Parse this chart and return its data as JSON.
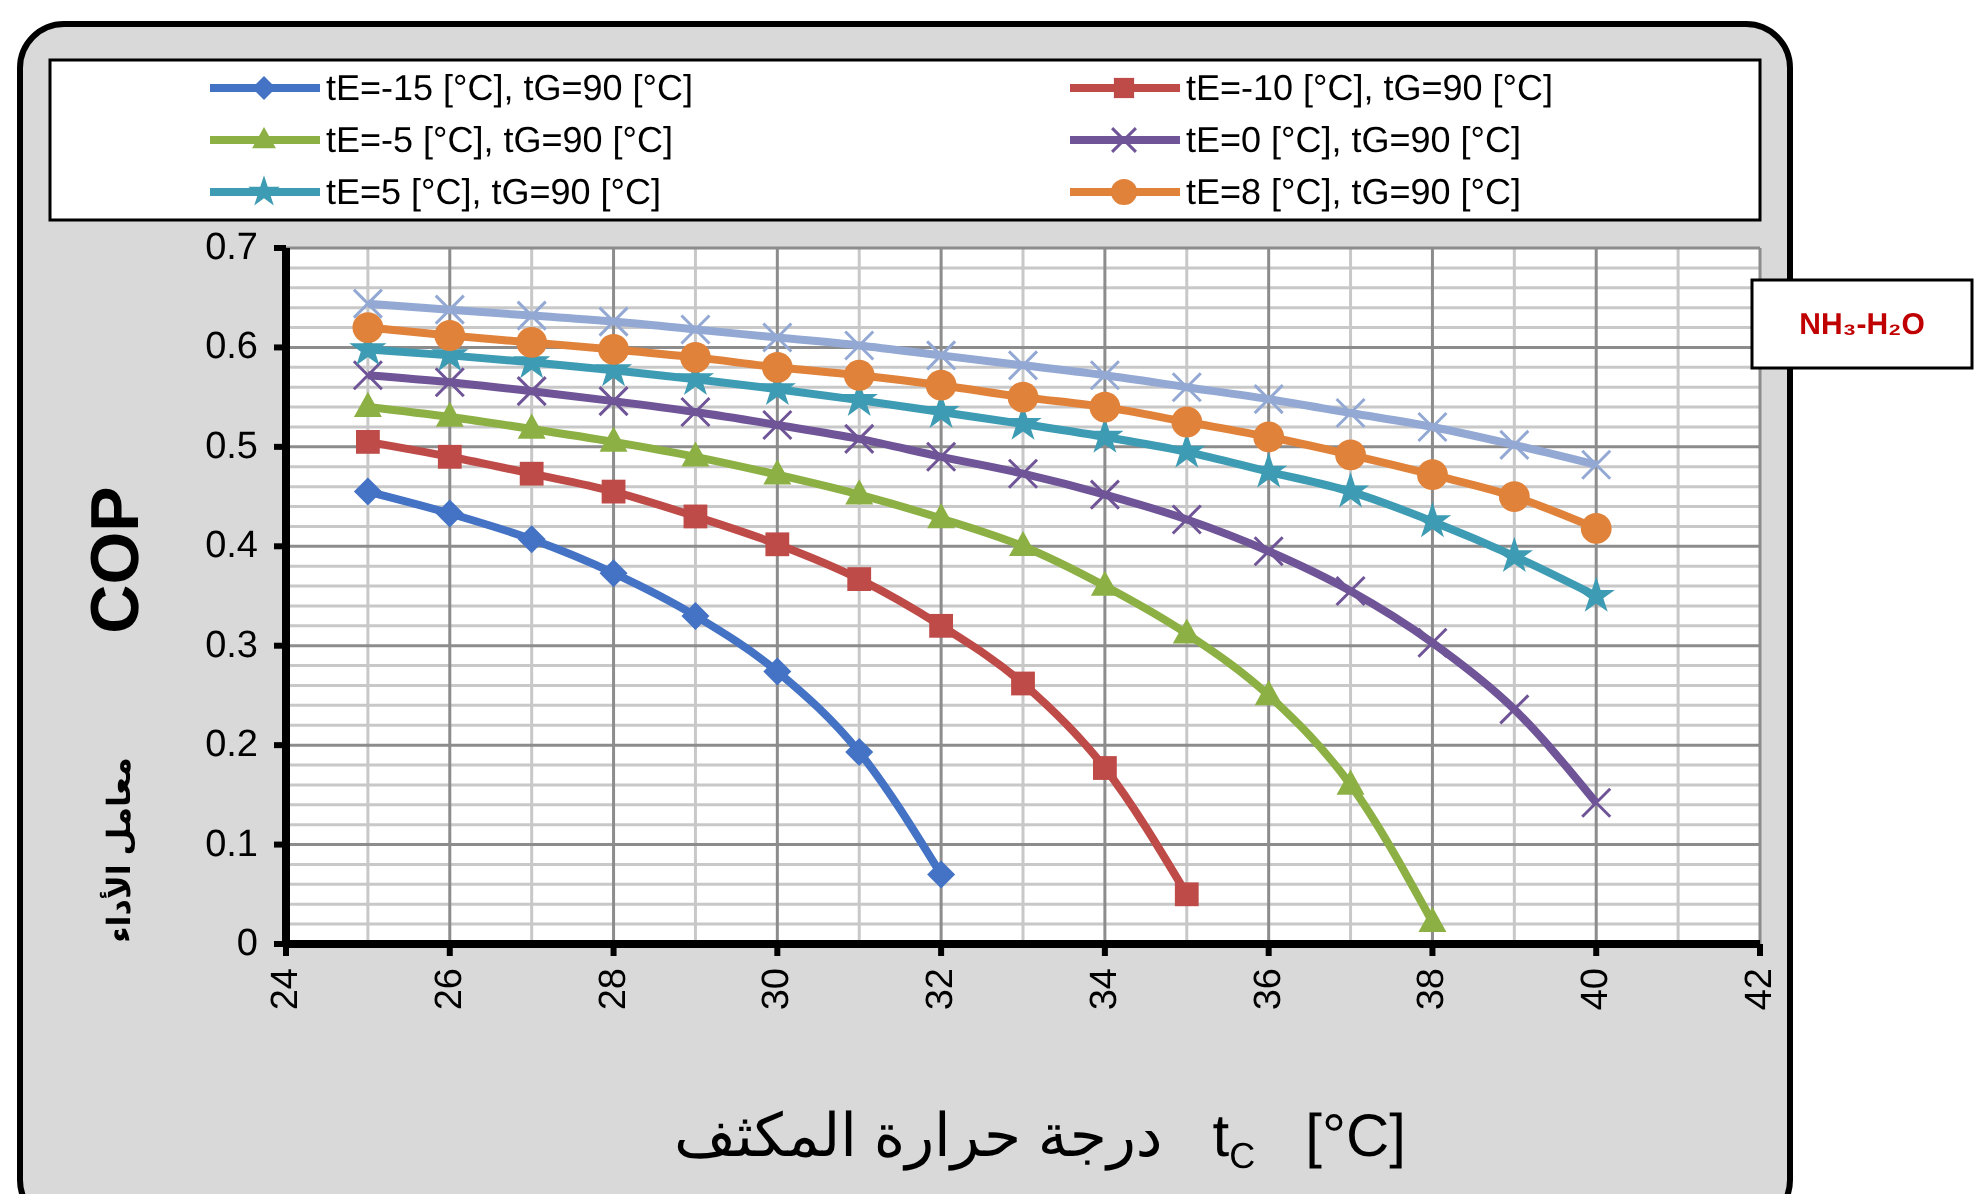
{
  "chart_data": {
    "type": "line",
    "ylabel": "COP",
    "xlabel": "درجة حرارة المكثف   t$_{C}$   [°C]",
    "annotations": [
      "NH₃-H₂O",
      "معامل الأداء"
    ],
    "xlim": [
      24,
      42
    ],
    "xticks": [
      24,
      26,
      28,
      30,
      32,
      34,
      36,
      38,
      40,
      42
    ],
    "ylim": [
      0,
      0.7
    ],
    "yticks": [
      0,
      0.1,
      0.2,
      0.3,
      0.4,
      0.5,
      0.6,
      0.7
    ],
    "grid": true,
    "legend": "top",
    "series": [
      {
        "name": "tE=-15 [°C], tG=90 [°C]",
        "color": "#4472c4",
        "marker": "diamond",
        "x": [
          25,
          26,
          27,
          28,
          29,
          30,
          31,
          32
        ],
        "values": [
          0.455,
          0.433,
          0.407,
          0.373,
          0.33,
          0.274,
          0.193,
          0.07
        ]
      },
      {
        "name": "tE=-10 [°C], tG=90 [°C]",
        "color": "#be4b48",
        "marker": "square",
        "x": [
          25,
          26,
          27,
          28,
          29,
          30,
          31,
          32,
          33,
          34,
          35
        ],
        "values": [
          0.505,
          0.49,
          0.473,
          0.455,
          0.43,
          0.402,
          0.367,
          0.32,
          0.262,
          0.177,
          0.05
        ]
      },
      {
        "name": "tE=-5 [°C], tG=90 [°C]",
        "color": "#8cb043",
        "marker": "triangle",
        "x": [
          25,
          26,
          27,
          28,
          29,
          30,
          31,
          32,
          33,
          34,
          35,
          36,
          37,
          38
        ],
        "values": [
          0.54,
          0.53,
          0.518,
          0.505,
          0.49,
          0.472,
          0.452,
          0.428,
          0.4,
          0.36,
          0.312,
          0.25,
          0.16,
          0.022
        ]
      },
      {
        "name": "tE=0 [°C], tG=90 [°C]",
        "color": "#6f5597",
        "marker": "cross",
        "x": [
          25,
          26,
          27,
          28,
          29,
          30,
          31,
          32,
          33,
          34,
          35,
          36,
          37,
          38,
          39,
          40
        ],
        "values": [
          0.572,
          0.565,
          0.556,
          0.546,
          0.535,
          0.522,
          0.508,
          0.49,
          0.473,
          0.452,
          0.427,
          0.395,
          0.355,
          0.303,
          0.236,
          0.142
        ]
      },
      {
        "name": "tE=5 [°C], tG=90 [°C]",
        "color": "#3d9cb3",
        "marker": "star",
        "x": [
          25,
          26,
          27,
          28,
          29,
          30,
          31,
          32,
          33,
          34,
          35,
          36,
          37,
          38,
          39,
          40
        ],
        "values": [
          0.598,
          0.592,
          0.585,
          0.577,
          0.568,
          0.558,
          0.547,
          0.535,
          0.523,
          0.51,
          0.495,
          0.475,
          0.455,
          0.425,
          0.39,
          0.35
        ]
      },
      {
        "name": "tE=8 [°C], tG=90 [°C]",
        "color": "#e0823a",
        "marker": "circle",
        "x": [
          25,
          26,
          27,
          28,
          29,
          30,
          31,
          32,
          33,
          34,
          35,
          36,
          37,
          38,
          39,
          40
        ],
        "values": [
          0.62,
          0.612,
          0.605,
          0.598,
          0.59,
          0.58,
          0.572,
          0.562,
          0.55,
          0.54,
          0.525,
          0.51,
          0.492,
          0.472,
          0.45,
          0.418
        ]
      },
      {
        "color": "#93a9d4",
        "marker": "cross",
        "x": [
          25,
          26,
          27,
          28,
          29,
          30,
          31,
          32,
          33,
          34,
          35,
          36,
          37,
          38,
          39,
          40
        ],
        "values": [
          0.644,
          0.638,
          0.632,
          0.626,
          0.618,
          0.61,
          0.602,
          0.592,
          0.582,
          0.572,
          0.56,
          0.548,
          0.534,
          0.52,
          0.502,
          0.482
        ]
      }
    ]
  }
}
